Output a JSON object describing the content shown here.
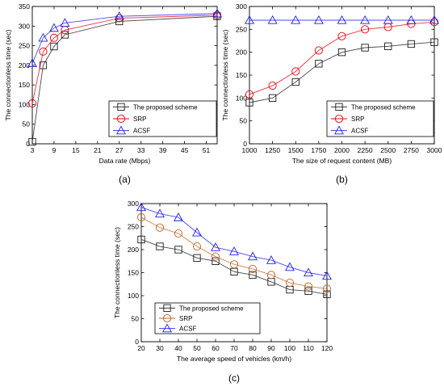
{
  "chart_data": [
    {
      "type": "line",
      "caption": "(a)",
      "xlabel": "Data rate (Mbps)",
      "ylabel": "The connectionless time (sec)",
      "xlim": [
        3,
        54
      ],
      "ylim": [
        0,
        350
      ],
      "xticks": [
        3,
        9,
        15,
        21,
        27,
        33,
        39,
        45,
        51
      ],
      "yticks": [
        0,
        50,
        100,
        150,
        200,
        250,
        300,
        350
      ],
      "legend_position": "bottom-right",
      "series": [
        {
          "name": "The proposed scheme",
          "marker": "square",
          "color": "#1a1a1a",
          "x": [
            3,
            6,
            9,
            12,
            27,
            54
          ],
          "y": [
            5,
            200,
            248,
            278,
            312,
            325
          ]
        },
        {
          "name": "SRP",
          "marker": "circle",
          "color": "#e8000b",
          "x": [
            3,
            6,
            9,
            12,
            27,
            54
          ],
          "y": [
            103,
            235,
            270,
            290,
            320,
            328
          ]
        },
        {
          "name": "ACSF",
          "marker": "triangle",
          "color": "#1f1fe6",
          "x": [
            3,
            6,
            9,
            12,
            27,
            54
          ],
          "y": [
            205,
            270,
            295,
            308,
            325,
            332
          ]
        }
      ]
    },
    {
      "type": "line",
      "caption": "(b)",
      "xlabel": "The size of request content (MB)",
      "ylabel": "The connectionless time (sec)",
      "xlim": [
        1000,
        3000
      ],
      "ylim": [
        0,
        300
      ],
      "xticks": [
        1000,
        1250,
        1500,
        1750,
        2000,
        2250,
        2500,
        2750,
        3000
      ],
      "yticks": [
        0,
        50,
        100,
        150,
        200,
        250,
        300
      ],
      "legend_position": "bottom-right",
      "series": [
        {
          "name": "The proposed scheme",
          "marker": "square",
          "color": "#1a1a1a",
          "x": [
            1000,
            1250,
            1500,
            1750,
            2000,
            2250,
            2500,
            2750,
            3000
          ],
          "y": [
            90,
            100,
            135,
            175,
            200,
            210,
            213,
            218,
            222
          ]
        },
        {
          "name": "SRP",
          "marker": "circle",
          "color": "#e8000b",
          "x": [
            1000,
            1250,
            1500,
            1750,
            2000,
            2250,
            2500,
            2750,
            3000
          ],
          "y": [
            108,
            127,
            158,
            204,
            235,
            250,
            255,
            262,
            266
          ]
        },
        {
          "name": "ACSF",
          "marker": "triangle",
          "color": "#1f1fe6",
          "x": [
            1000,
            1250,
            1500,
            1750,
            2000,
            2250,
            2500,
            2750,
            3000
          ],
          "y": [
            270,
            270,
            270,
            270,
            270,
            270,
            270,
            270,
            270
          ]
        }
      ]
    },
    {
      "type": "line",
      "caption": "(c)",
      "xlabel": "The average speed of vehicles (km/h)",
      "ylabel": "The connectionless time (sec)",
      "xlim": [
        20,
        120
      ],
      "ylim": [
        0,
        300
      ],
      "xticks": [
        20,
        30,
        40,
        50,
        60,
        70,
        80,
        90,
        100,
        110,
        120
      ],
      "yticks": [
        0,
        50,
        100,
        150,
        200,
        250,
        300
      ],
      "legend_position": "bottom-left",
      "series": [
        {
          "name": "The proposed scheme",
          "marker": "square",
          "color": "#1a1a1a",
          "x": [
            20,
            30,
            40,
            50,
            60,
            70,
            80,
            90,
            100,
            110,
            120
          ],
          "y": [
            222,
            207,
            200,
            182,
            175,
            152,
            145,
            130,
            113,
            110,
            103
          ]
        },
        {
          "name": "SRP",
          "marker": "circle",
          "color": "#b8632a",
          "x": [
            20,
            30,
            40,
            50,
            60,
            70,
            80,
            90,
            100,
            110,
            120
          ],
          "y": [
            270,
            248,
            235,
            207,
            185,
            168,
            158,
            145,
            128,
            120,
            115
          ]
        },
        {
          "name": "ACSF",
          "marker": "triangle",
          "color": "#1f1fe6",
          "x": [
            20,
            30,
            40,
            50,
            60,
            70,
            80,
            90,
            100,
            110,
            120
          ],
          "y": [
            292,
            278,
            270,
            237,
            205,
            196,
            185,
            177,
            162,
            150,
            143
          ]
        }
      ]
    }
  ]
}
